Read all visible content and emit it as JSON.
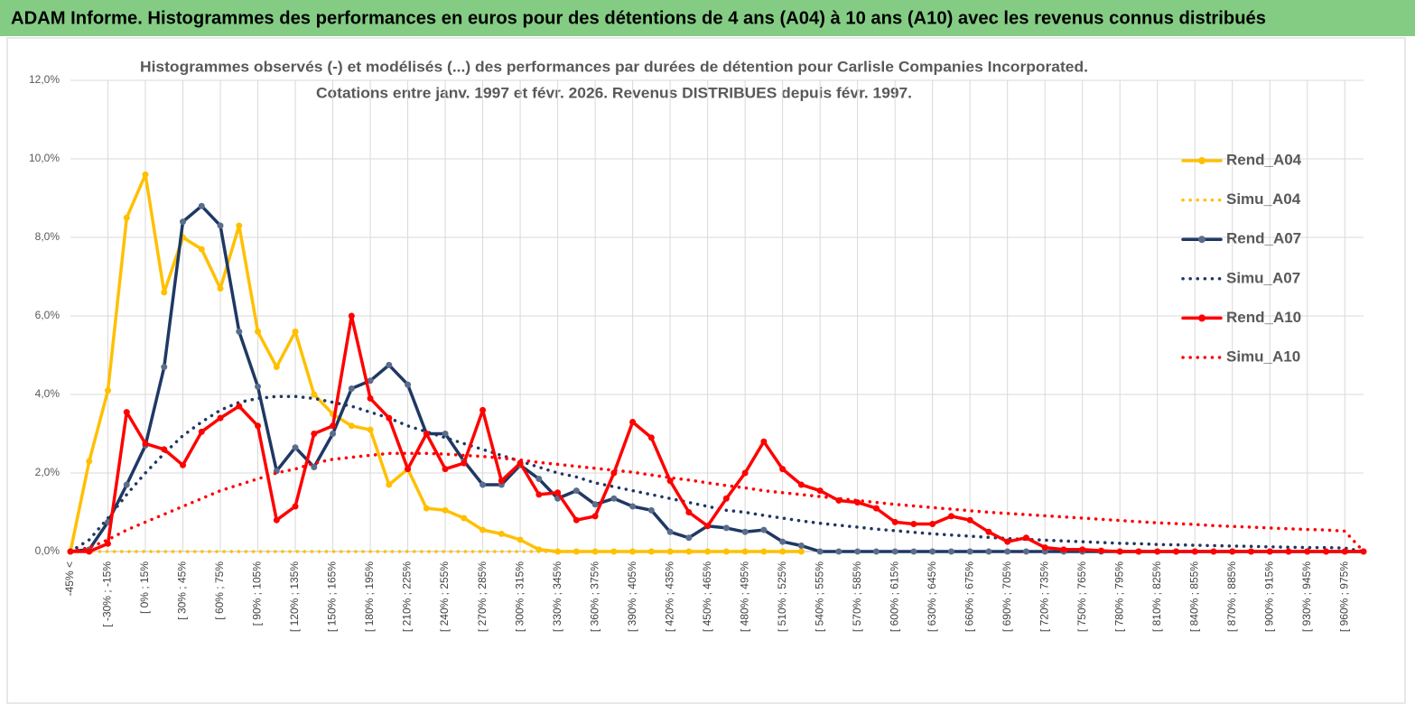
{
  "chart_data": {
    "type": "line",
    "title": "ADAM Informe. Histogrammes des performances en euros pour des détentions de 4 ans (A04) à 10 ans (A10) avec les revenus connus distribués",
    "subtitle": [
      "Histogrammes observés (-)  et modélisés (...) des performances par durées de détention pour Carlisle Companies Incorporated.",
      "Cotations entre janv. 1997 et févr. 2026. Revenus DISTRIBUES depuis févr. 1997."
    ],
    "categories": [
      "-45% <",
      null,
      "[ -30% ; -15%",
      null,
      "[ 0% ; 15%",
      null,
      "[ 30% ; 45%",
      null,
      "[ 60% ; 75%",
      null,
      "[ 90% ; 105%",
      null,
      "[ 120% ; 135%",
      null,
      "[ 150% ; 165%",
      null,
      "[ 180% ; 195%",
      null,
      "[ 210% ; 225%",
      null,
      "[ 240% ; 255%",
      null,
      "[ 270% ; 285%",
      null,
      "[ 300% ; 315%",
      null,
      "[ 330% ; 345%",
      null,
      "[ 360% ; 375%",
      null,
      "[ 390% ; 405%",
      null,
      "[ 420% ; 435%",
      null,
      "[ 450% ; 465%",
      null,
      "[ 480% ; 495%",
      null,
      "[ 510% ; 525%",
      null,
      "[ 540% ; 555%",
      null,
      "[ 570% ; 585%",
      null,
      "[ 600% ; 615%",
      null,
      "[ 630% ; 645%",
      null,
      "[ 660% ; 675%",
      null,
      "[ 690% ; 705%",
      null,
      "[ 720% ; 735%",
      null,
      "[ 750% ; 765%",
      null,
      "[ 780% ; 795%",
      null,
      "[ 810% ; 825%",
      null,
      "[ 840% ; 855%",
      null,
      "[ 870% ; 885%",
      null,
      "[ 900% ; 915%",
      null,
      "[ 930% ; 945%",
      null,
      "[ 960% ; 975%",
      null
    ],
    "series": [
      {
        "name": "Rend_A04",
        "color": "#ffc000",
        "style": "solid",
        "markers": true,
        "values": [
          0,
          2.3,
          4.1,
          8.5,
          9.6,
          6.6,
          8.0,
          7.7,
          6.7,
          8.3,
          5.6,
          4.7,
          5.6,
          4.0,
          3.5,
          3.2,
          3.1,
          1.7,
          2.1,
          1.1,
          1.05,
          0.85,
          0.55,
          0.45,
          0.3,
          0.05,
          0,
          0,
          0,
          0,
          0,
          0,
          0,
          0,
          0,
          0,
          0,
          0,
          0,
          0,
          null,
          null,
          null,
          null,
          null,
          null,
          null,
          null,
          null,
          null,
          null,
          null,
          null,
          null,
          null,
          null,
          null,
          null,
          null,
          null,
          null,
          null,
          null,
          null,
          null,
          null,
          null,
          null,
          null,
          null
        ]
      },
      {
        "name": "Simu_A04",
        "color": "#ffc000",
        "style": "dotted",
        "markers": false,
        "values": [
          0,
          0,
          0,
          0,
          0,
          0,
          0,
          0,
          0,
          0,
          0,
          0,
          0,
          0,
          0,
          0,
          0,
          0,
          0,
          0,
          0,
          0,
          0,
          0,
          0,
          0,
          0,
          0,
          0,
          0,
          0,
          0,
          0,
          0,
          0,
          0,
          0,
          0,
          0,
          0,
          null,
          null,
          null,
          null,
          null,
          null,
          null,
          null,
          null,
          null,
          null,
          null,
          null,
          null,
          null,
          null,
          null,
          null,
          null,
          null,
          null,
          null,
          null,
          null,
          null,
          null,
          null,
          null,
          null,
          null
        ]
      },
      {
        "name": "Rend_A07",
        "color": "#1f3864",
        "style": "solid",
        "markers": true,
        "values": [
          0,
          0.05,
          0.75,
          1.7,
          2.7,
          4.7,
          8.4,
          8.8,
          8.3,
          5.6,
          4.2,
          2.05,
          2.65,
          2.15,
          3.0,
          4.15,
          4.35,
          4.75,
          4.25,
          3.0,
          3.0,
          2.3,
          1.7,
          1.7,
          2.2,
          1.85,
          1.35,
          1.55,
          1.2,
          1.35,
          1.15,
          1.05,
          0.5,
          0.35,
          0.65,
          0.6,
          0.5,
          0.55,
          0.25,
          0.15,
          0,
          0,
          0,
          0,
          0,
          0,
          0,
          0,
          0,
          0,
          0,
          0,
          0,
          0,
          0,
          0,
          0,
          0,
          0,
          0,
          0,
          0,
          0,
          0,
          0,
          0,
          0,
          0,
          0,
          0
        ]
      },
      {
        "name": "Simu_A07",
        "color": "#1f3864",
        "style": "dotted",
        "markers": false,
        "values": [
          0,
          0.3,
          0.85,
          1.45,
          2.0,
          2.5,
          2.95,
          3.3,
          3.6,
          3.8,
          3.9,
          3.95,
          3.95,
          3.9,
          3.8,
          3.7,
          3.55,
          3.4,
          3.2,
          3.05,
          2.9,
          2.75,
          2.6,
          2.45,
          2.3,
          2.15,
          2.0,
          1.9,
          1.75,
          1.65,
          1.55,
          1.45,
          1.35,
          1.25,
          1.15,
          1.05,
          1.0,
          0.92,
          0.85,
          0.78,
          0.72,
          0.67,
          0.62,
          0.57,
          0.53,
          0.49,
          0.45,
          0.42,
          0.39,
          0.36,
          0.33,
          0.31,
          0.29,
          0.27,
          0.25,
          0.23,
          0.21,
          0.2,
          0.18,
          0.17,
          0.16,
          0.15,
          0.14,
          0.13,
          0.12,
          0.11,
          0.1,
          0.1,
          0.09,
          0
        ]
      },
      {
        "name": "Rend_A10",
        "color": "#ff0000",
        "style": "solid",
        "markers": true,
        "values": [
          0,
          0,
          0.2,
          3.55,
          2.75,
          2.6,
          2.2,
          3.05,
          3.4,
          3.7,
          3.2,
          0.8,
          1.15,
          3.0,
          3.2,
          6.0,
          3.9,
          3.4,
          2.1,
          3.0,
          2.1,
          2.25,
          3.6,
          1.8,
          2.25,
          1.45,
          1.5,
          0.8,
          0.9,
          2.0,
          3.3,
          2.9,
          1.8,
          1.0,
          0.65,
          1.35,
          2.0,
          2.8,
          2.1,
          1.7,
          1.55,
          1.3,
          1.25,
          1.1,
          0.75,
          0.7,
          0.7,
          0.9,
          0.8,
          0.5,
          0.25,
          0.35,
          0.1,
          0.05,
          0.05,
          0.02,
          0,
          0,
          0,
          0,
          0,
          0,
          0,
          0,
          0,
          0,
          0,
          0,
          0,
          0
        ]
      },
      {
        "name": "Simu_A10",
        "color": "#ff0000",
        "style": "dotted",
        "markers": false,
        "values": [
          0,
          0.1,
          0.3,
          0.55,
          0.75,
          0.95,
          1.15,
          1.35,
          1.55,
          1.7,
          1.85,
          2.0,
          2.1,
          2.25,
          2.35,
          2.4,
          2.45,
          2.5,
          2.5,
          2.5,
          2.48,
          2.45,
          2.42,
          2.38,
          2.33,
          2.27,
          2.22,
          2.17,
          2.12,
          2.07,
          2.02,
          1.95,
          1.88,
          1.82,
          1.75,
          1.68,
          1.62,
          1.55,
          1.5,
          1.45,
          1.4,
          1.35,
          1.3,
          1.25,
          1.2,
          1.16,
          1.12,
          1.08,
          1.04,
          1.0,
          0.97,
          0.94,
          0.91,
          0.88,
          0.85,
          0.82,
          0.79,
          0.76,
          0.73,
          0.71,
          0.69,
          0.66,
          0.64,
          0.62,
          0.6,
          0.58,
          0.56,
          0.55,
          0.52,
          0
        ]
      }
    ],
    "ylim": [
      0,
      12
    ],
    "yticks": [
      {
        "value": 0,
        "label": "0,0%"
      },
      {
        "value": 2,
        "label": "2,0%"
      },
      {
        "value": 4,
        "label": "4,0%"
      },
      {
        "value": 6,
        "label": "6,0%"
      },
      {
        "value": 8,
        "label": "8,0%"
      },
      {
        "value": 10,
        "label": "10,0%"
      },
      {
        "value": 12,
        "label": "12,0%"
      }
    ],
    "grid": true,
    "xgrid": true,
    "legend": "right"
  }
}
